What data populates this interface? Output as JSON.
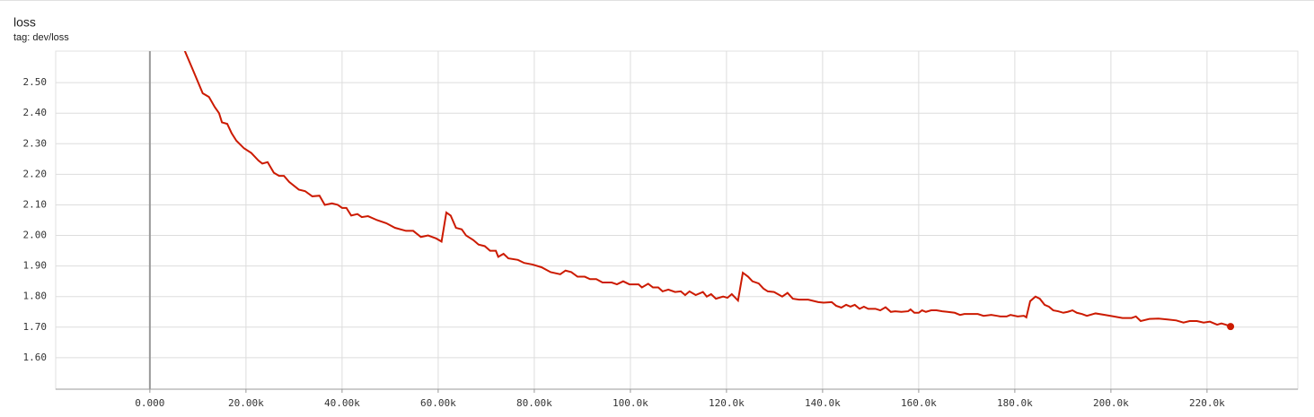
{
  "chart_data": {
    "type": "line",
    "title": "loss",
    "subtitle": "tag: dev/loss",
    "color": "#cc1a00",
    "grid": true,
    "xlim": [
      -19600,
      238900
    ],
    "ylim": [
      1.497,
      2.603
    ],
    "xticks": [
      {
        "value": 0,
        "label": "0.000"
      },
      {
        "value": 20000,
        "label": "20.00k"
      },
      {
        "value": 40000,
        "label": "40.00k"
      },
      {
        "value": 60000,
        "label": "60.00k"
      },
      {
        "value": 80000,
        "label": "80.00k"
      },
      {
        "value": 100000,
        "label": "100.0k"
      },
      {
        "value": 120000,
        "label": "120.0k"
      },
      {
        "value": 140000,
        "label": "140.0k"
      },
      {
        "value": 160000,
        "label": "160.0k"
      },
      {
        "value": 180000,
        "label": "180.0k"
      },
      {
        "value": 200000,
        "label": "200.0k"
      },
      {
        "value": 220000,
        "label": "220.0k"
      }
    ],
    "yticks": [
      {
        "value": 1.6,
        "label": "1.60"
      },
      {
        "value": 1.7,
        "label": "1.70"
      },
      {
        "value": 1.8,
        "label": "1.80"
      },
      {
        "value": 1.9,
        "label": "1.90"
      },
      {
        "value": 2.0,
        "label": "2.00"
      },
      {
        "value": 2.1,
        "label": "2.10"
      },
      {
        "value": 2.2,
        "label": "2.20"
      },
      {
        "value": 2.3,
        "label": "2.30"
      },
      {
        "value": 2.4,
        "label": "2.40"
      },
      {
        "value": 2.5,
        "label": "2.50"
      }
    ],
    "x": [
      7100,
      9000,
      11000,
      12300,
      13500,
      14400,
      15000,
      16100,
      17000,
      18000,
      19600,
      21100,
      22600,
      23400,
      24500,
      25800,
      26900,
      27900,
      29000,
      31000,
      32300,
      33800,
      35300,
      36400,
      37900,
      39100,
      40000,
      40900,
      41900,
      43200,
      44100,
      45400,
      47300,
      49200,
      51000,
      53300,
      54800,
      56400,
      57900,
      59600,
      60700,
      61700,
      62600,
      63700,
      64900,
      65800,
      67300,
      68400,
      69700,
      70800,
      72000,
      72500,
      73600,
      74600,
      76600,
      77900,
      79600,
      81500,
      83400,
      85400,
      86500,
      87700,
      89000,
      90500,
      91600,
      92900,
      94200,
      96100,
      97200,
      98500,
      99800,
      101700,
      102400,
      103700,
      104700,
      105800,
      106700,
      107900,
      109300,
      110500,
      111400,
      112300,
      113600,
      115100,
      115900,
      116800,
      117800,
      119300,
      120200,
      121100,
      122400,
      123400,
      124500,
      125400,
      126700,
      127700,
      128600,
      129900,
      131600,
      132700,
      133800,
      135100,
      137000,
      139100,
      140200,
      141900,
      142800,
      143900,
      144900,
      145800,
      146700,
      147700,
      148600,
      149500,
      151000,
      152000,
      153100,
      154200,
      155100,
      156400,
      157800,
      158300,
      159100,
      160000,
      160700,
      161500,
      162600,
      163700,
      164900,
      166000,
      167500,
      168600,
      169500,
      170700,
      172300,
      173500,
      175100,
      176300,
      177000,
      178300,
      179100,
      180600,
      181900,
      182400,
      183200,
      184300,
      185200,
      186200,
      187100,
      188000,
      189000,
      190100,
      191000,
      192000,
      192900,
      194000,
      195000,
      196800,
      198700,
      200600,
      202400,
      204300,
      205200,
      206200,
      208000,
      209900,
      211800,
      213600,
      215100,
      216400,
      217900,
      219300,
      220600,
      222100,
      223000,
      223900,
      224900
    ],
    "values": [
      2.61,
      2.54,
      2.465,
      2.453,
      2.42,
      2.4,
      2.37,
      2.365,
      2.335,
      2.31,
      2.285,
      2.27,
      2.245,
      2.235,
      2.24,
      2.205,
      2.195,
      2.195,
      2.175,
      2.15,
      2.145,
      2.128,
      2.13,
      2.1,
      2.105,
      2.1,
      2.09,
      2.09,
      2.065,
      2.07,
      2.06,
      2.063,
      2.05,
      2.04,
      2.025,
      2.015,
      2.015,
      1.995,
      2.0,
      1.99,
      1.98,
      2.075,
      2.065,
      2.025,
      2.02,
      2.0,
      1.985,
      1.97,
      1.965,
      1.95,
      1.95,
      1.93,
      1.94,
      1.925,
      1.92,
      1.91,
      1.905,
      1.896,
      1.88,
      1.873,
      1.885,
      1.88,
      1.865,
      1.865,
      1.857,
      1.857,
      1.846,
      1.846,
      1.84,
      1.85,
      1.84,
      1.84,
      1.83,
      1.842,
      1.83,
      1.83,
      1.817,
      1.823,
      1.815,
      1.817,
      1.805,
      1.817,
      1.805,
      1.815,
      1.8,
      1.808,
      1.793,
      1.8,
      1.796,
      1.808,
      1.787,
      1.878,
      1.865,
      1.85,
      1.843,
      1.826,
      1.817,
      1.815,
      1.8,
      1.812,
      1.793,
      1.79,
      1.79,
      1.782,
      1.78,
      1.782,
      1.77,
      1.764,
      1.773,
      1.767,
      1.773,
      1.76,
      1.767,
      1.76,
      1.76,
      1.755,
      1.765,
      1.75,
      1.752,
      1.75,
      1.752,
      1.758,
      1.747,
      1.747,
      1.755,
      1.75,
      1.755,
      1.755,
      1.752,
      1.75,
      1.747,
      1.74,
      1.743,
      1.743,
      1.743,
      1.737,
      1.74,
      1.737,
      1.735,
      1.735,
      1.74,
      1.735,
      1.737,
      1.732,
      1.785,
      1.8,
      1.793,
      1.773,
      1.767,
      1.755,
      1.752,
      1.747,
      1.75,
      1.755,
      1.747,
      1.743,
      1.737,
      1.745,
      1.74,
      1.735,
      1.73,
      1.73,
      1.735,
      1.72,
      1.727,
      1.728,
      1.725,
      1.722,
      1.715,
      1.72,
      1.72,
      1.715,
      1.718,
      1.708,
      1.712,
      1.708,
      1.702
    ]
  }
}
